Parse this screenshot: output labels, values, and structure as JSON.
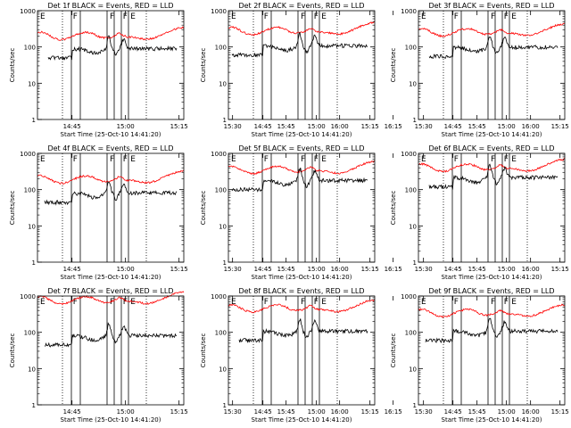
{
  "chart_data": {
    "type": "line",
    "y_scale": "log",
    "ylim": [
      1,
      1000
    ],
    "y_ticks": [
      "1",
      "10",
      "100",
      "1000"
    ],
    "x_ticks": [
      "14:45",
      "15:00",
      "15:15",
      "15:30",
      "15:45",
      "16:00",
      "16:15"
    ],
    "x_range_minutes": [
      -6,
      35
    ],
    "xlabel": "Start Time (25-Oct-10 14:41:20)",
    "ylabel": "Counts/sec",
    "solid_markers_min": [
      3.5,
      6.0,
      13.5,
      15.5,
      17.5,
      19.5
    ],
    "dotted_markers_min": [
      1.0,
      24.5
    ],
    "marker_letters": [
      {
        "t": -5.5,
        "letter": "E"
      },
      {
        "t": 3.7,
        "letter": "F"
      },
      {
        "t": 14.0,
        "letter": "F"
      },
      {
        "t": 17.7,
        "letter": "F"
      },
      {
        "t": 19.8,
        "letter": "E"
      }
    ],
    "panels": [
      {
        "title": "Det 1f BLACK = Events, RED = LLD",
        "lld_base": 190,
        "ev_base": 50,
        "ev_start": -3
      },
      {
        "title": "Det 2f BLACK = Events, RED = LLD",
        "lld_base": 260,
        "ev_base": 60,
        "ev_start": -5
      },
      {
        "title": "Det 3f BLACK = Events, RED = LLD",
        "lld_base": 240,
        "ev_base": 55,
        "ev_start": -3
      },
      {
        "title": "Det 4f BLACK = Events, RED = LLD",
        "lld_base": 180,
        "ev_base": 45,
        "ev_start": -4
      },
      {
        "title": "Det 5f BLACK = Events, RED = LLD",
        "lld_base": 330,
        "ev_base": 100,
        "ev_start": -5
      },
      {
        "title": "Det 6f BLACK = Events, RED = LLD",
        "lld_base": 380,
        "ev_base": 120,
        "ev_start": -3
      },
      {
        "title": "Det 7f BLACK = Events, RED = LLD",
        "lld_base": 720,
        "ev_base": 45,
        "ev_start": -4
      },
      {
        "title": "Det 8f BLACK = Events, RED = LLD",
        "lld_base": 430,
        "ev_base": 60,
        "ev_start": -3
      },
      {
        "title": "Det 9f BLACK = Events, RED = LLD",
        "lld_base": 320,
        "ev_base": 60,
        "ev_start": -4
      }
    ],
    "series": [
      {
        "color": "#ff0000"
      },
      {
        "color": "#000000"
      }
    ]
  }
}
